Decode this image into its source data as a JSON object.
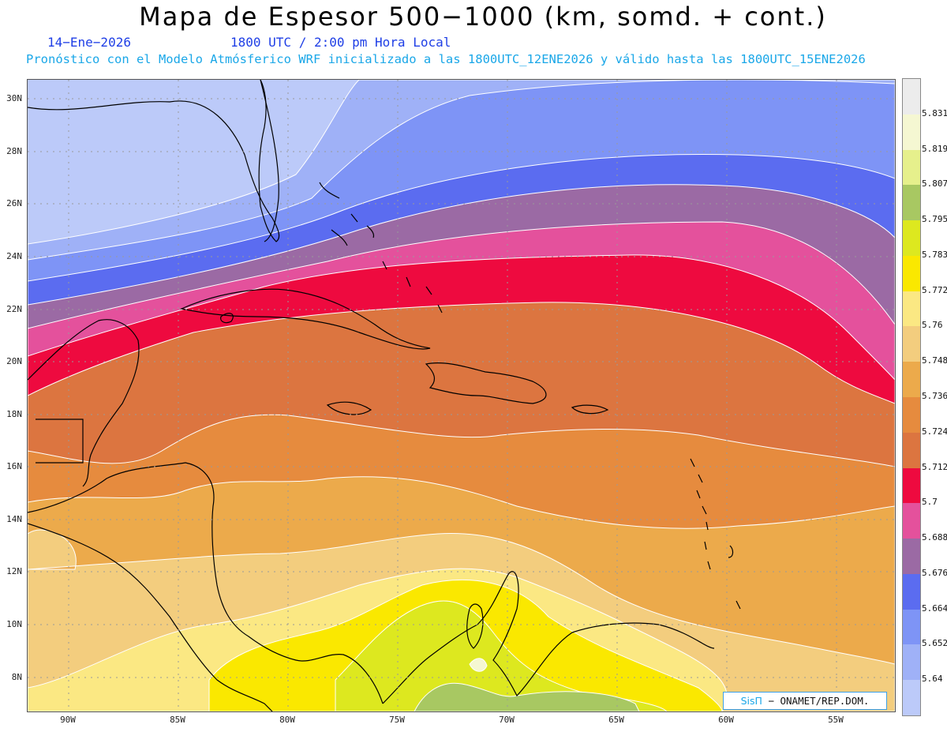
{
  "header": {
    "title": "Mapa de Espesor 500−1000 (km, somd. + cont.)",
    "date": "14−Ene−2026",
    "time": "1800 UTC / 2:00 pm Hora Local",
    "forecast": "Pronóstico con el Modelo Atmósferico WRF inicializado a las 1800UTC_12ENE2026 y válido hasta las  1800UTC_15ENE2026"
  },
  "axes": {
    "lat_labels": [
      "30N",
      "28N",
      "26N",
      "24N",
      "22N",
      "20N",
      "18N",
      "16N",
      "14N",
      "12N",
      "10N",
      "8N"
    ],
    "lon_labels": [
      "90W",
      "85W",
      "80W",
      "75W",
      "70W",
      "65W",
      "60W",
      "55W"
    ]
  },
  "colorbar": {
    "levels": [
      {
        "label": "5.831",
        "color": "#ececec"
      },
      {
        "label": "5.819",
        "color": "#f5f7d2"
      },
      {
        "label": "5.807",
        "color": "#e6f08c"
      },
      {
        "label": "5.795",
        "color": "#a8c862"
      },
      {
        "label": "5.783",
        "color": "#dde81f"
      },
      {
        "label": "5.772",
        "color": "#fae800"
      },
      {
        "label": "5.76",
        "color": "#fbe883"
      },
      {
        "label": "5.748",
        "color": "#f3cd7e"
      },
      {
        "label": "5.736",
        "color": "#ecaa4b"
      },
      {
        "label": "5.724",
        "color": "#e68b3e"
      },
      {
        "label": "5.712",
        "color": "#dc7540"
      },
      {
        "label": "5.7",
        "color": "#ee0a3f"
      },
      {
        "label": "5.688",
        "color": "#e4519c"
      },
      {
        "label": "5.676",
        "color": "#9b6aa4"
      },
      {
        "label": "5.664",
        "color": "#5b6cf0"
      },
      {
        "label": "5.652",
        "color": "#7e94f6"
      },
      {
        "label": "5.64",
        "color": "#9fb1f7"
      },
      {
        "label": "",
        "color": "#bccaf9"
      }
    ]
  },
  "credit": {
    "logo": "SisΠ",
    "text": "− ONAMET/REP.DOM."
  }
}
